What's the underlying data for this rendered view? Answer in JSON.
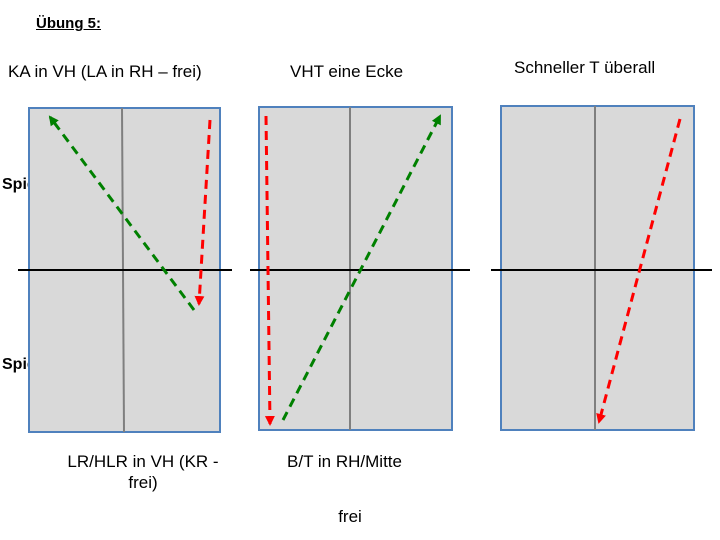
{
  "title": "Übung 5:",
  "players": {
    "a": "Spieler A",
    "b": "Spieler B"
  },
  "panels": [
    {
      "heading": "KA in VH (LA in RH – frei)",
      "footer_line1": "LR/HLR in VH (KR -",
      "footer_line2": "frei)"
    },
    {
      "heading": "VHT eine Ecke",
      "footer_line1": "B/T in RH/Mitte",
      "footer_line2": ""
    },
    {
      "heading": "Schneller T überall",
      "footer_line1": "",
      "footer_line2": ""
    }
  ],
  "extra_note": "frei",
  "colors": {
    "table_fill": "#d9d9d9",
    "table_border": "#4f81bd",
    "center_line": "#7f7f7f",
    "net_line": "#000000",
    "red_arrow": "#ff0000",
    "green_arrow": "#008000"
  }
}
